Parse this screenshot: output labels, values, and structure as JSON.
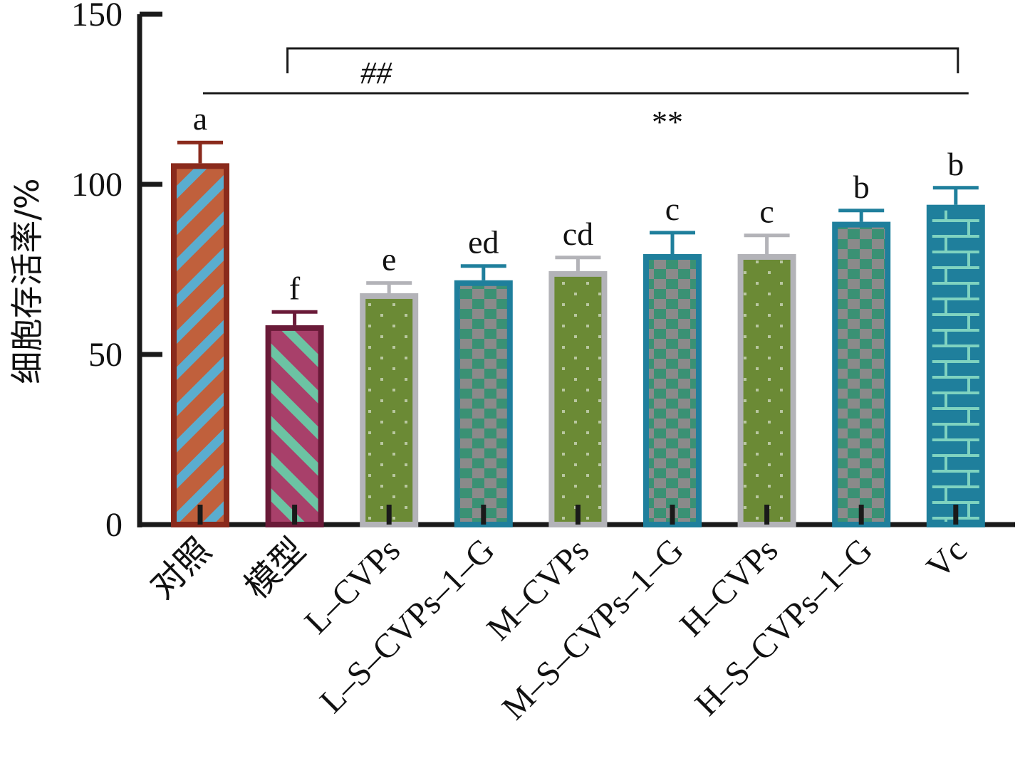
{
  "chart_data": {
    "type": "bar",
    "title": "",
    "xlabel": "",
    "ylabel": "细胞存活率/%",
    "ylim": [
      0,
      150
    ],
    "yticks": [
      0,
      50,
      100,
      150
    ],
    "ytick_labels": [
      "0",
      "50",
      "100",
      "150"
    ],
    "grid": false,
    "legend": "none",
    "categories": [
      "对照",
      "模型",
      "L–CVPs",
      "L–S–CVPs–1–G",
      "M–CVPs",
      "M–S–CVPs–1–G",
      "H–CVPs",
      "H–S–CVPs–1–G",
      "Vc"
    ],
    "values": [
      106.2,
      58.6,
      68.0,
      71.8,
      74.5,
      79.5,
      79.5,
      89.0,
      94.0
    ],
    "errors": [
      6.1,
      3.9,
      3.0,
      4.2,
      4.0,
      6.3,
      5.5,
      3.3,
      5.0
    ],
    "significance_letters": [
      "a",
      "f",
      "e",
      "ed",
      "cd",
      "c",
      "c",
      "b",
      "b"
    ],
    "annotations": [
      {
        "text": "##",
        "from_category": "模型",
        "to_category": "Vc",
        "type": "bracket"
      },
      {
        "text": "**",
        "from_category": "对照",
        "to_category": "Vc",
        "type": "line"
      }
    ],
    "styles": [
      {
        "pattern": "diagonal-down",
        "fill": "#c0603c",
        "stripe": "#5aadcf",
        "border": "#8a2a1c"
      },
      {
        "pattern": "diagonal-up",
        "fill": "#a8406a",
        "stripe": "#6cc3a3",
        "border": "#6a1a38"
      },
      {
        "pattern": "dots",
        "fill": "#6b8a35",
        "stripe": "#b9c7a0",
        "border": "#b3b3b8"
      },
      {
        "pattern": "checker",
        "fill": "#3a9174",
        "stripe": "#8a8a8a",
        "border": "#1f7f9c"
      },
      {
        "pattern": "dots",
        "fill": "#6b8a35",
        "stripe": "#b9c7a0",
        "border": "#b3b3b8"
      },
      {
        "pattern": "checker",
        "fill": "#3a9174",
        "stripe": "#8a8a8a",
        "border": "#1f7f9c"
      },
      {
        "pattern": "dots",
        "fill": "#6b8a35",
        "stripe": "#b9c7a0",
        "border": "#b3b3b8"
      },
      {
        "pattern": "checker",
        "fill": "#3a9174",
        "stripe": "#8a8a8a",
        "border": "#1f7f9c"
      },
      {
        "pattern": "brick",
        "fill": "#1f7f9c",
        "stripe": "#7fd3c0",
        "border": "#1f7f9c"
      }
    ],
    "axis_color": "#1a1a1a"
  }
}
